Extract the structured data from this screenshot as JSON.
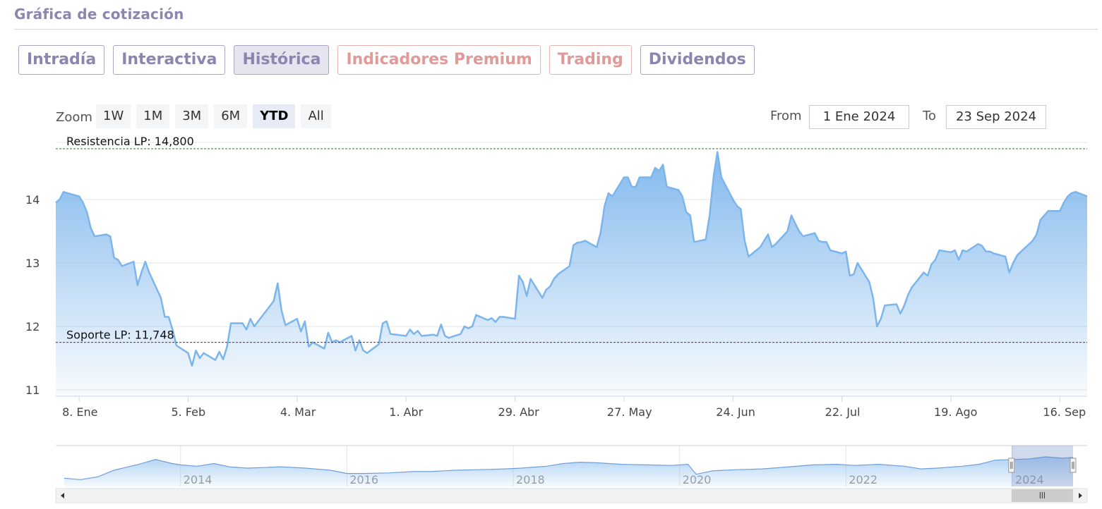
{
  "section_title": "Gráfica de cotización",
  "tabs": [
    {
      "label": "Intradía",
      "kind": "normal"
    },
    {
      "label": "Interactiva",
      "kind": "normal"
    },
    {
      "label": "Histórica",
      "kind": "active"
    },
    {
      "label": "Indicadores Premium",
      "kind": "premium"
    },
    {
      "label": "Trading",
      "kind": "premium"
    },
    {
      "label": "Dividendos",
      "kind": "normal"
    }
  ],
  "zoom": {
    "label": "Zoom",
    "buttons": [
      "1W",
      "1M",
      "3M",
      "6M",
      "YTD",
      "All"
    ],
    "selected": "YTD"
  },
  "range": {
    "from_label": "From",
    "from_value": "1 Ene 2024",
    "to_label": "To",
    "to_value": "23 Sep 2024"
  },
  "colors": {
    "line": "#7cb5ec",
    "resistance": "#2a7a2a",
    "support": "#8b1a2b",
    "navigator": "#6f9fd8"
  },
  "chart_data": {
    "type": "area",
    "x_type": "date",
    "ylim": [
      10.9,
      14.9
    ],
    "yticks": [
      11,
      12,
      13,
      14
    ],
    "xticks": [
      {
        "date": "2024-01-08",
        "label": "8. Ene"
      },
      {
        "date": "2024-02-05",
        "label": "5. Feb"
      },
      {
        "date": "2024-03-04",
        "label": "4. Mar"
      },
      {
        "date": "2024-04-01",
        "label": "1. Abr"
      },
      {
        "date": "2024-04-29",
        "label": "29. Abr"
      },
      {
        "date": "2024-05-27",
        "label": "27. May"
      },
      {
        "date": "2024-06-24",
        "label": "24. Jun"
      },
      {
        "date": "2024-07-22",
        "label": "22. Jul"
      },
      {
        "date": "2024-08-19",
        "label": "19. Ago"
      },
      {
        "date": "2024-09-16",
        "label": "16. Sep"
      }
    ],
    "xlim": [
      "2024-01-02",
      "2024-09-23"
    ],
    "series": [
      {
        "points": [
          [
            "2024-01-02",
            13.95
          ],
          [
            "2024-01-03",
            14.0
          ],
          [
            "2024-01-04",
            14.12
          ],
          [
            "2024-01-05",
            14.1
          ],
          [
            "2024-01-08",
            14.05
          ],
          [
            "2024-01-09",
            13.95
          ],
          [
            "2024-01-10",
            13.8
          ],
          [
            "2024-01-11",
            13.55
          ],
          [
            "2024-01-12",
            13.42
          ],
          [
            "2024-01-15",
            13.45
          ],
          [
            "2024-01-16",
            13.42
          ],
          [
            "2024-01-17",
            13.08
          ],
          [
            "2024-01-18",
            13.05
          ],
          [
            "2024-01-19",
            12.95
          ],
          [
            "2024-01-22",
            13.02
          ],
          [
            "2024-01-23",
            12.65
          ],
          [
            "2024-01-24",
            12.85
          ],
          [
            "2024-01-25",
            13.02
          ],
          [
            "2024-01-26",
            12.85
          ],
          [
            "2024-01-29",
            12.45
          ],
          [
            "2024-01-30",
            12.15
          ],
          [
            "2024-01-31",
            12.15
          ],
          [
            "2024-02-01",
            11.95
          ],
          [
            "2024-02-02",
            11.7
          ],
          [
            "2024-02-05",
            11.58
          ],
          [
            "2024-02-06",
            11.38
          ],
          [
            "2024-02-07",
            11.62
          ],
          [
            "2024-02-08",
            11.5
          ],
          [
            "2024-02-09",
            11.58
          ],
          [
            "2024-02-12",
            11.47
          ],
          [
            "2024-02-13",
            11.6
          ],
          [
            "2024-02-14",
            11.48
          ],
          [
            "2024-02-15",
            11.68
          ],
          [
            "2024-02-16",
            12.05
          ],
          [
            "2024-02-19",
            12.05
          ],
          [
            "2024-02-20",
            11.95
          ],
          [
            "2024-02-21",
            12.12
          ],
          [
            "2024-02-22",
            12.0
          ],
          [
            "2024-02-23",
            12.08
          ],
          [
            "2024-02-26",
            12.32
          ],
          [
            "2024-02-27",
            12.4
          ],
          [
            "2024-02-28",
            12.68
          ],
          [
            "2024-02-29",
            12.25
          ],
          [
            "2024-03-01",
            12.02
          ],
          [
            "2024-03-04",
            12.12
          ],
          [
            "2024-03-05",
            11.92
          ],
          [
            "2024-03-06",
            12.08
          ],
          [
            "2024-03-07",
            11.68
          ],
          [
            "2024-03-08",
            11.75
          ],
          [
            "2024-03-11",
            11.65
          ],
          [
            "2024-03-12",
            11.9
          ],
          [
            "2024-03-13",
            11.75
          ],
          [
            "2024-03-14",
            11.78
          ],
          [
            "2024-03-15",
            11.75
          ],
          [
            "2024-03-18",
            11.85
          ],
          [
            "2024-03-19",
            11.62
          ],
          [
            "2024-03-20",
            11.78
          ],
          [
            "2024-03-21",
            11.62
          ],
          [
            "2024-03-22",
            11.58
          ],
          [
            "2024-03-25",
            11.72
          ],
          [
            "2024-03-26",
            12.05
          ],
          [
            "2024-03-27",
            12.08
          ],
          [
            "2024-03-28",
            11.88
          ],
          [
            "2024-04-01",
            11.85
          ],
          [
            "2024-04-02",
            11.95
          ],
          [
            "2024-04-03",
            11.88
          ],
          [
            "2024-04-04",
            11.93
          ],
          [
            "2024-04-05",
            11.85
          ],
          [
            "2024-04-08",
            11.87
          ],
          [
            "2024-04-09",
            11.85
          ],
          [
            "2024-04-10",
            12.03
          ],
          [
            "2024-04-11",
            11.85
          ],
          [
            "2024-04-12",
            11.82
          ],
          [
            "2024-04-15",
            11.88
          ],
          [
            "2024-04-16",
            12.0
          ],
          [
            "2024-04-17",
            11.97
          ],
          [
            "2024-04-18",
            12.0
          ],
          [
            "2024-04-19",
            12.18
          ],
          [
            "2024-04-22",
            12.1
          ],
          [
            "2024-04-23",
            12.13
          ],
          [
            "2024-04-24",
            12.07
          ],
          [
            "2024-04-25",
            12.15
          ],
          [
            "2024-04-26",
            12.15
          ],
          [
            "2024-04-29",
            12.12
          ],
          [
            "2024-04-30",
            12.8
          ],
          [
            "2024-05-01",
            12.7
          ],
          [
            "2024-05-02",
            12.48
          ],
          [
            "2024-05-03",
            12.75
          ],
          [
            "2024-05-06",
            12.45
          ],
          [
            "2024-05-07",
            12.58
          ],
          [
            "2024-05-08",
            12.63
          ],
          [
            "2024-05-09",
            12.75
          ],
          [
            "2024-05-10",
            12.82
          ],
          [
            "2024-05-13",
            12.95
          ],
          [
            "2024-05-14",
            13.28
          ],
          [
            "2024-05-15",
            13.32
          ],
          [
            "2024-05-16",
            13.33
          ],
          [
            "2024-05-17",
            13.35
          ],
          [
            "2024-05-20",
            13.25
          ],
          [
            "2024-05-21",
            13.48
          ],
          [
            "2024-05-22",
            13.9
          ],
          [
            "2024-05-23",
            14.1
          ],
          [
            "2024-05-24",
            14.05
          ],
          [
            "2024-05-27",
            14.35
          ],
          [
            "2024-05-28",
            14.35
          ],
          [
            "2024-05-29",
            14.2
          ],
          [
            "2024-05-30",
            14.2
          ],
          [
            "2024-05-31",
            14.35
          ],
          [
            "2024-06-03",
            14.35
          ],
          [
            "2024-06-04",
            14.5
          ],
          [
            "2024-06-05",
            14.45
          ],
          [
            "2024-06-06",
            14.55
          ],
          [
            "2024-06-07",
            14.2
          ],
          [
            "2024-06-10",
            14.15
          ],
          [
            "2024-06-11",
            14.05
          ],
          [
            "2024-06-12",
            13.8
          ],
          [
            "2024-06-13",
            13.75
          ],
          [
            "2024-06-14",
            13.33
          ],
          [
            "2024-06-17",
            13.37
          ],
          [
            "2024-06-18",
            13.75
          ],
          [
            "2024-06-19",
            14.35
          ],
          [
            "2024-06-20",
            14.75
          ],
          [
            "2024-06-21",
            14.35
          ],
          [
            "2024-06-24",
            14.0
          ],
          [
            "2024-06-25",
            13.9
          ],
          [
            "2024-06-26",
            13.85
          ],
          [
            "2024-06-27",
            13.35
          ],
          [
            "2024-06-28",
            13.1
          ],
          [
            "2024-07-01",
            13.25
          ],
          [
            "2024-07-02",
            13.35
          ],
          [
            "2024-07-03",
            13.45
          ],
          [
            "2024-07-04",
            13.25
          ],
          [
            "2024-07-05",
            13.3
          ],
          [
            "2024-07-08",
            13.5
          ],
          [
            "2024-07-09",
            13.75
          ],
          [
            "2024-07-10",
            13.62
          ],
          [
            "2024-07-11",
            13.5
          ],
          [
            "2024-07-12",
            13.42
          ],
          [
            "2024-07-15",
            13.47
          ],
          [
            "2024-07-16",
            13.35
          ],
          [
            "2024-07-17",
            13.33
          ],
          [
            "2024-07-18",
            13.33
          ],
          [
            "2024-07-19",
            13.2
          ],
          [
            "2024-07-22",
            13.15
          ],
          [
            "2024-07-23",
            13.18
          ],
          [
            "2024-07-24",
            12.8
          ],
          [
            "2024-07-25",
            12.82
          ],
          [
            "2024-07-26",
            13.0
          ],
          [
            "2024-07-29",
            12.7
          ],
          [
            "2024-07-30",
            12.45
          ],
          [
            "2024-07-31",
            12.0
          ],
          [
            "2024-08-01",
            12.12
          ],
          [
            "2024-08-02",
            12.33
          ],
          [
            "2024-08-05",
            12.35
          ],
          [
            "2024-08-06",
            12.2
          ],
          [
            "2024-08-07",
            12.33
          ],
          [
            "2024-08-08",
            12.5
          ],
          [
            "2024-08-09",
            12.62
          ],
          [
            "2024-08-12",
            12.85
          ],
          [
            "2024-08-13",
            12.8
          ],
          [
            "2024-08-14",
            12.98
          ],
          [
            "2024-08-15",
            13.05
          ],
          [
            "2024-08-16",
            13.2
          ],
          [
            "2024-08-19",
            13.17
          ],
          [
            "2024-08-20",
            13.2
          ],
          [
            "2024-08-21",
            13.05
          ],
          [
            "2024-08-22",
            13.2
          ],
          [
            "2024-08-23",
            13.18
          ],
          [
            "2024-08-26",
            13.3
          ],
          [
            "2024-08-27",
            13.27
          ],
          [
            "2024-08-28",
            13.18
          ],
          [
            "2024-08-29",
            13.18
          ],
          [
            "2024-08-30",
            13.15
          ],
          [
            "2024-09-02",
            13.1
          ],
          [
            "2024-09-03",
            12.85
          ],
          [
            "2024-09-04",
            13.0
          ],
          [
            "2024-09-05",
            13.12
          ],
          [
            "2024-09-06",
            13.18
          ],
          [
            "2024-09-09",
            13.35
          ],
          [
            "2024-09-10",
            13.45
          ],
          [
            "2024-09-11",
            13.68
          ],
          [
            "2024-09-12",
            13.75
          ],
          [
            "2024-09-13",
            13.82
          ],
          [
            "2024-09-16",
            13.82
          ],
          [
            "2024-09-17",
            13.95
          ],
          [
            "2024-09-18",
            14.05
          ],
          [
            "2024-09-19",
            14.1
          ],
          [
            "2024-09-20",
            14.12
          ],
          [
            "2024-09-23",
            14.05
          ]
        ]
      }
    ],
    "plot_lines": [
      {
        "value": 14.8,
        "label": "Resistencia LP: 14,800"
      },
      {
        "value": 11.748,
        "label": "Soporte LP: 11,748"
      }
    ],
    "navigator": {
      "xlim": [
        2012.5,
        2024.9
      ],
      "labels": [
        {
          "year": 2014,
          "label": "2014"
        },
        {
          "year": 2016,
          "label": "2016"
        },
        {
          "year": 2018,
          "label": "2018"
        },
        {
          "year": 2020,
          "label": "2020"
        },
        {
          "year": 2022,
          "label": "2022"
        },
        {
          "year": 2024,
          "label": "2024"
        }
      ],
      "series": [
        [
          2012.6,
          0.2
        ],
        [
          2012.8,
          0.15
        ],
        [
          2013.0,
          0.25
        ],
        [
          2013.2,
          0.5
        ],
        [
          2013.4,
          0.65
        ],
        [
          2013.5,
          0.72
        ],
        [
          2013.7,
          0.9
        ],
        [
          2013.9,
          0.75
        ],
        [
          2014.0,
          0.7
        ],
        [
          2014.2,
          0.65
        ],
        [
          2014.4,
          0.75
        ],
        [
          2014.6,
          0.62
        ],
        [
          2014.8,
          0.58
        ],
        [
          2015.0,
          0.6
        ],
        [
          2015.2,
          0.63
        ],
        [
          2015.5,
          0.58
        ],
        [
          2015.8,
          0.5
        ],
        [
          2016.0,
          0.38
        ],
        [
          2016.2,
          0.38
        ],
        [
          2016.5,
          0.4
        ],
        [
          2016.8,
          0.45
        ],
        [
          2017.0,
          0.45
        ],
        [
          2017.3,
          0.5
        ],
        [
          2017.6,
          0.52
        ],
        [
          2017.9,
          0.55
        ],
        [
          2018.1,
          0.58
        ],
        [
          2018.4,
          0.65
        ],
        [
          2018.6,
          0.75
        ],
        [
          2018.8,
          0.8
        ],
        [
          2019.0,
          0.78
        ],
        [
          2019.3,
          0.72
        ],
        [
          2019.6,
          0.7
        ],
        [
          2019.9,
          0.68
        ],
        [
          2020.1,
          0.72
        ],
        [
          2020.2,
          0.35
        ],
        [
          2020.4,
          0.48
        ],
        [
          2020.7,
          0.52
        ],
        [
          2021.0,
          0.55
        ],
        [
          2021.3,
          0.62
        ],
        [
          2021.6,
          0.7
        ],
        [
          2021.9,
          0.72
        ],
        [
          2022.1,
          0.68
        ],
        [
          2022.4,
          0.72
        ],
        [
          2022.7,
          0.65
        ],
        [
          2022.9,
          0.55
        ],
        [
          2023.1,
          0.58
        ],
        [
          2023.4,
          0.65
        ],
        [
          2023.6,
          0.72
        ],
        [
          2023.8,
          0.88
        ],
        [
          2024.0,
          0.9
        ],
        [
          2024.2,
          0.92
        ],
        [
          2024.4,
          1.0
        ],
        [
          2024.6,
          0.95
        ],
        [
          2024.73,
          0.98
        ]
      ],
      "selection": [
        2023.99,
        2024.73
      ]
    }
  }
}
